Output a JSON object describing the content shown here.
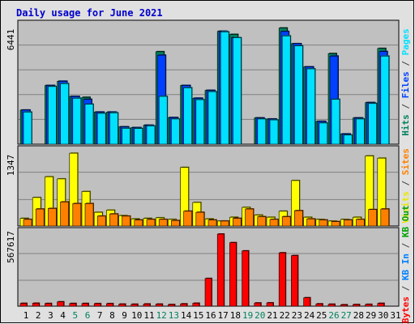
{
  "chart_data": {
    "type": "bar",
    "title": "Daily usage for June 2021",
    "categories": [
      "1",
      "2",
      "3",
      "4",
      "5",
      "6",
      "7",
      "8",
      "9",
      "10",
      "11",
      "12",
      "13",
      "14",
      "15",
      "16",
      "17",
      "18",
      "19",
      "20",
      "21",
      "22",
      "23",
      "24",
      "25",
      "26",
      "27",
      "28",
      "29",
      "30",
      "31"
    ],
    "weekend_days": [
      "5",
      "6",
      "12",
      "13",
      "19",
      "20",
      "26",
      "27"
    ],
    "panels": [
      {
        "max_label": "6441",
        "ymax": 6441,
        "side_label": [
          {
            "text": "Hits",
            "color": "#00805c"
          },
          {
            "text": " / ",
            "color": "#444444"
          },
          {
            "text": "Files",
            "color": "#0040ff"
          },
          {
            "text": " / ",
            "color": "#444444"
          },
          {
            "text": "Pages",
            "color": "#00e0ff"
          }
        ],
        "series": [
          {
            "name": "Hits",
            "color": "#00805c",
            "values": [
              1870,
              0,
              3220,
              3450,
              2620,
              2570,
              1760,
              1760,
              950,
              910,
              1040,
              5070,
              1460,
              3220,
              2520,
              2950,
              6190,
              6020,
              0,
              1440,
              1380,
              6370,
              5510,
              4240,
              1250,
              4970,
              560,
              1440,
              2280,
              5250,
              0
            ]
          },
          {
            "name": "Files",
            "color": "#0040ff",
            "values": [
              1870,
              0,
              3220,
              3450,
              2620,
              2460,
              1760,
              1760,
              950,
              910,
              1040,
              4880,
              1460,
              3220,
              2520,
              2950,
              6190,
              5840,
              0,
              1440,
              1380,
              6180,
              5510,
              4240,
              1250,
              4830,
              560,
              1440,
              2280,
              5080,
              0
            ]
          },
          {
            "name": "Pages",
            "color": "#00e0ff",
            "values": [
              1760,
              0,
              3160,
              3320,
              2520,
              2190,
              1690,
              1720,
              870,
              860,
              1000,
              2620,
              1380,
              3090,
              2440,
              2880,
              6160,
              5840,
              0,
              1380,
              1330,
              5940,
              5390,
              4130,
              1160,
              2460,
              500,
              1380,
              2230,
              4830,
              0
            ]
          }
        ]
      },
      {
        "max_label": "1347",
        "ymax": 1347,
        "side_label": [
          {
            "text": "Visits",
            "color": "#e8e800"
          },
          {
            "text": " / ",
            "color": "#444444"
          },
          {
            "text": "Sites",
            "color": "#ff8000"
          }
        ],
        "series": [
          {
            "name": "Visits",
            "color": "#ffff00",
            "values": [
              140,
              520,
              900,
              860,
              1330,
              630,
              250,
              290,
              190,
              130,
              140,
              150,
              120,
              1070,
              430,
              130,
              90,
              160,
              340,
              200,
              160,
              270,
              830,
              160,
              120,
              90,
              120,
              160,
              1280,
              1240,
              0
            ]
          },
          {
            "name": "Sites",
            "color": "#ff8000",
            "values": [
              120,
              310,
              320,
              440,
              410,
              410,
              180,
              220,
              180,
              110,
              120,
              120,
              100,
              270,
              250,
              110,
              90,
              140,
              310,
              170,
              120,
              170,
              280,
              130,
              110,
              80,
              110,
              120,
              300,
              310,
              0
            ]
          }
        ]
      },
      {
        "max_label": "567617",
        "ymax": 567617,
        "side_label": [
          {
            "text": "KBytes",
            "color": "#ff0000"
          },
          {
            "text": " / ",
            "color": "#444444"
          },
          {
            "text": "KB In",
            "color": "#0080ff"
          },
          {
            "text": " / ",
            "color": "#444444"
          },
          {
            "text": "KB Out",
            "color": "#00a000"
          }
        ],
        "series": [
          {
            "name": "KBytes",
            "color": "#ff0000",
            "values": [
              22000,
              23000,
              21000,
              34000,
              21000,
              21000,
              20000,
              20000,
              16000,
              15000,
              17000,
              16000,
              13000,
              18000,
              23000,
              218000,
              567617,
              500000,
              435000,
              25000,
              26000,
              420000,
              398000,
              66000,
              18000,
              15000,
              11000,
              13000,
              14000,
              22000,
              0
            ]
          }
        ]
      }
    ]
  }
}
